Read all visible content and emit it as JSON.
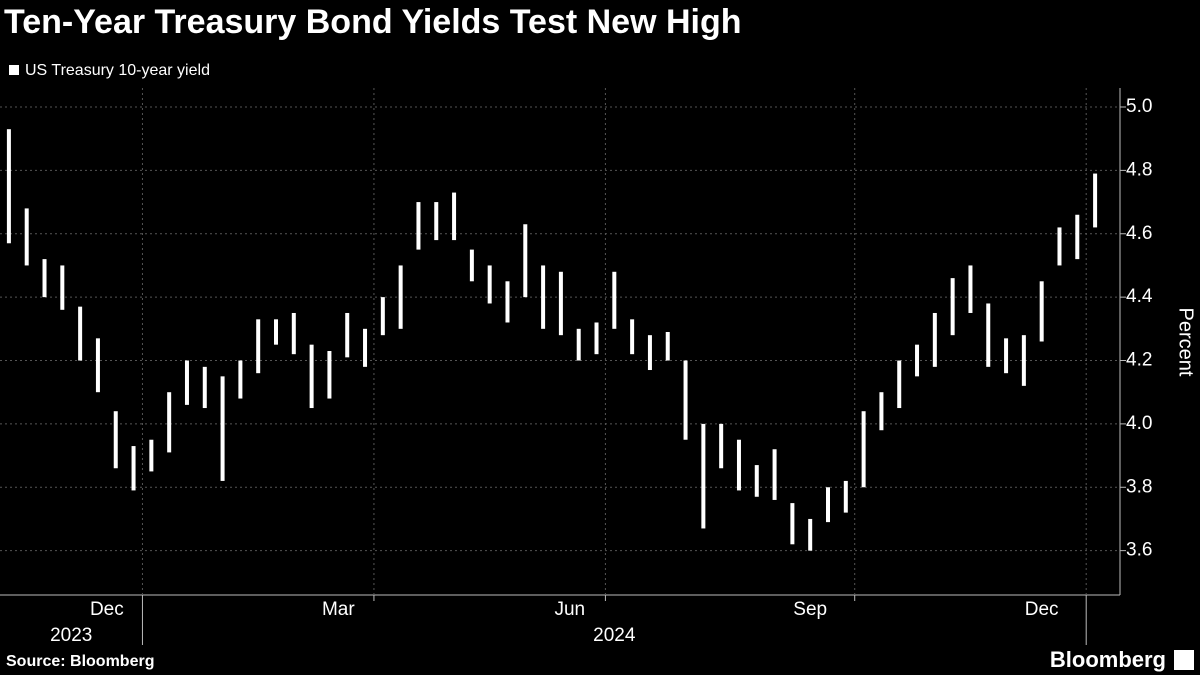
{
  "chart_data": {
    "type": "ohlc",
    "title": "Ten-Year Treasury Bond Yields Test New High",
    "series": [
      {
        "name": "US Treasury 10-year yield",
        "color": "#ffffff",
        "high": [
          4.93,
          4.68,
          4.52,
          4.5,
          4.37,
          4.27,
          4.04,
          3.93,
          3.95,
          4.1,
          4.2,
          4.18,
          4.15,
          4.2,
          4.33,
          4.33,
          4.35,
          4.25,
          4.23,
          4.35,
          4.3,
          4.4,
          4.5,
          4.7,
          4.7,
          4.73,
          4.55,
          4.5,
          4.45,
          4.63,
          4.5,
          4.48,
          4.3,
          4.32,
          4.48,
          4.33,
          4.28,
          4.29,
          4.2,
          4.0,
          4.0,
          3.95,
          3.87,
          3.92,
          3.75,
          3.7,
          3.8,
          3.82,
          4.04,
          4.1,
          4.2,
          4.25,
          4.35,
          4.46,
          4.5,
          4.38,
          4.27,
          4.28,
          4.45,
          4.62,
          4.66,
          4.79
        ],
        "low": [
          4.57,
          4.5,
          4.4,
          4.36,
          4.2,
          4.1,
          3.86,
          3.79,
          3.85,
          3.91,
          4.06,
          4.05,
          3.82,
          4.08,
          4.16,
          4.25,
          4.22,
          4.05,
          4.08,
          4.21,
          4.18,
          4.28,
          4.3,
          4.55,
          4.58,
          4.58,
          4.45,
          4.38,
          4.32,
          4.4,
          4.3,
          4.28,
          4.2,
          4.22,
          4.3,
          4.22,
          4.17,
          4.2,
          3.95,
          3.67,
          3.86,
          3.79,
          3.77,
          3.76,
          3.62,
          3.6,
          3.69,
          3.72,
          3.8,
          3.98,
          4.05,
          4.15,
          4.18,
          4.28,
          4.35,
          4.18,
          4.16,
          4.12,
          4.26,
          4.5,
          4.52,
          4.62
        ]
      }
    ],
    "x": [
      "2023-11",
      "2023-11",
      "2023-11",
      "2023-11",
      "2023-12",
      "2023-12",
      "2023-12",
      "2023-12",
      "2024-01",
      "2024-01",
      "2024-01",
      "2024-01",
      "2024-01",
      "2024-02",
      "2024-02",
      "2024-02",
      "2024-02",
      "2024-03",
      "2024-03",
      "2024-03",
      "2024-03",
      "2024-04",
      "2024-04",
      "2024-04",
      "2024-04",
      "2024-04",
      "2024-05",
      "2024-05",
      "2024-05",
      "2024-05",
      "2024-06",
      "2024-06",
      "2024-06",
      "2024-06",
      "2024-07",
      "2024-07",
      "2024-07",
      "2024-07",
      "2024-07",
      "2024-08",
      "2024-08",
      "2024-08",
      "2024-08",
      "2024-09",
      "2024-09",
      "2024-09",
      "2024-09",
      "2024-09",
      "2024-10",
      "2024-10",
      "2024-10",
      "2024-10",
      "2024-11",
      "2024-11",
      "2024-11",
      "2024-11",
      "2024-12",
      "2024-12",
      "2024-12",
      "2024-12",
      "2024-12",
      "2025-01"
    ],
    "x_month_labels": [
      "Dec",
      "Mar",
      "Jun",
      "Sep",
      "Dec"
    ],
    "x_year_labels": [
      "2023",
      "2024"
    ],
    "ylabel": "Percent",
    "ylim": [
      3.46,
      5.06
    ],
    "yticks": [
      3.6,
      3.8,
      {
        "value": 4,
        "label": "4.0"
      },
      4.2,
      4.4,
      4.6,
      4.8,
      {
        "value": 5,
        "label": "5.0"
      }
    ],
    "grid": true,
    "source": "Source: Bloomberg",
    "brand": "Bloomberg"
  }
}
